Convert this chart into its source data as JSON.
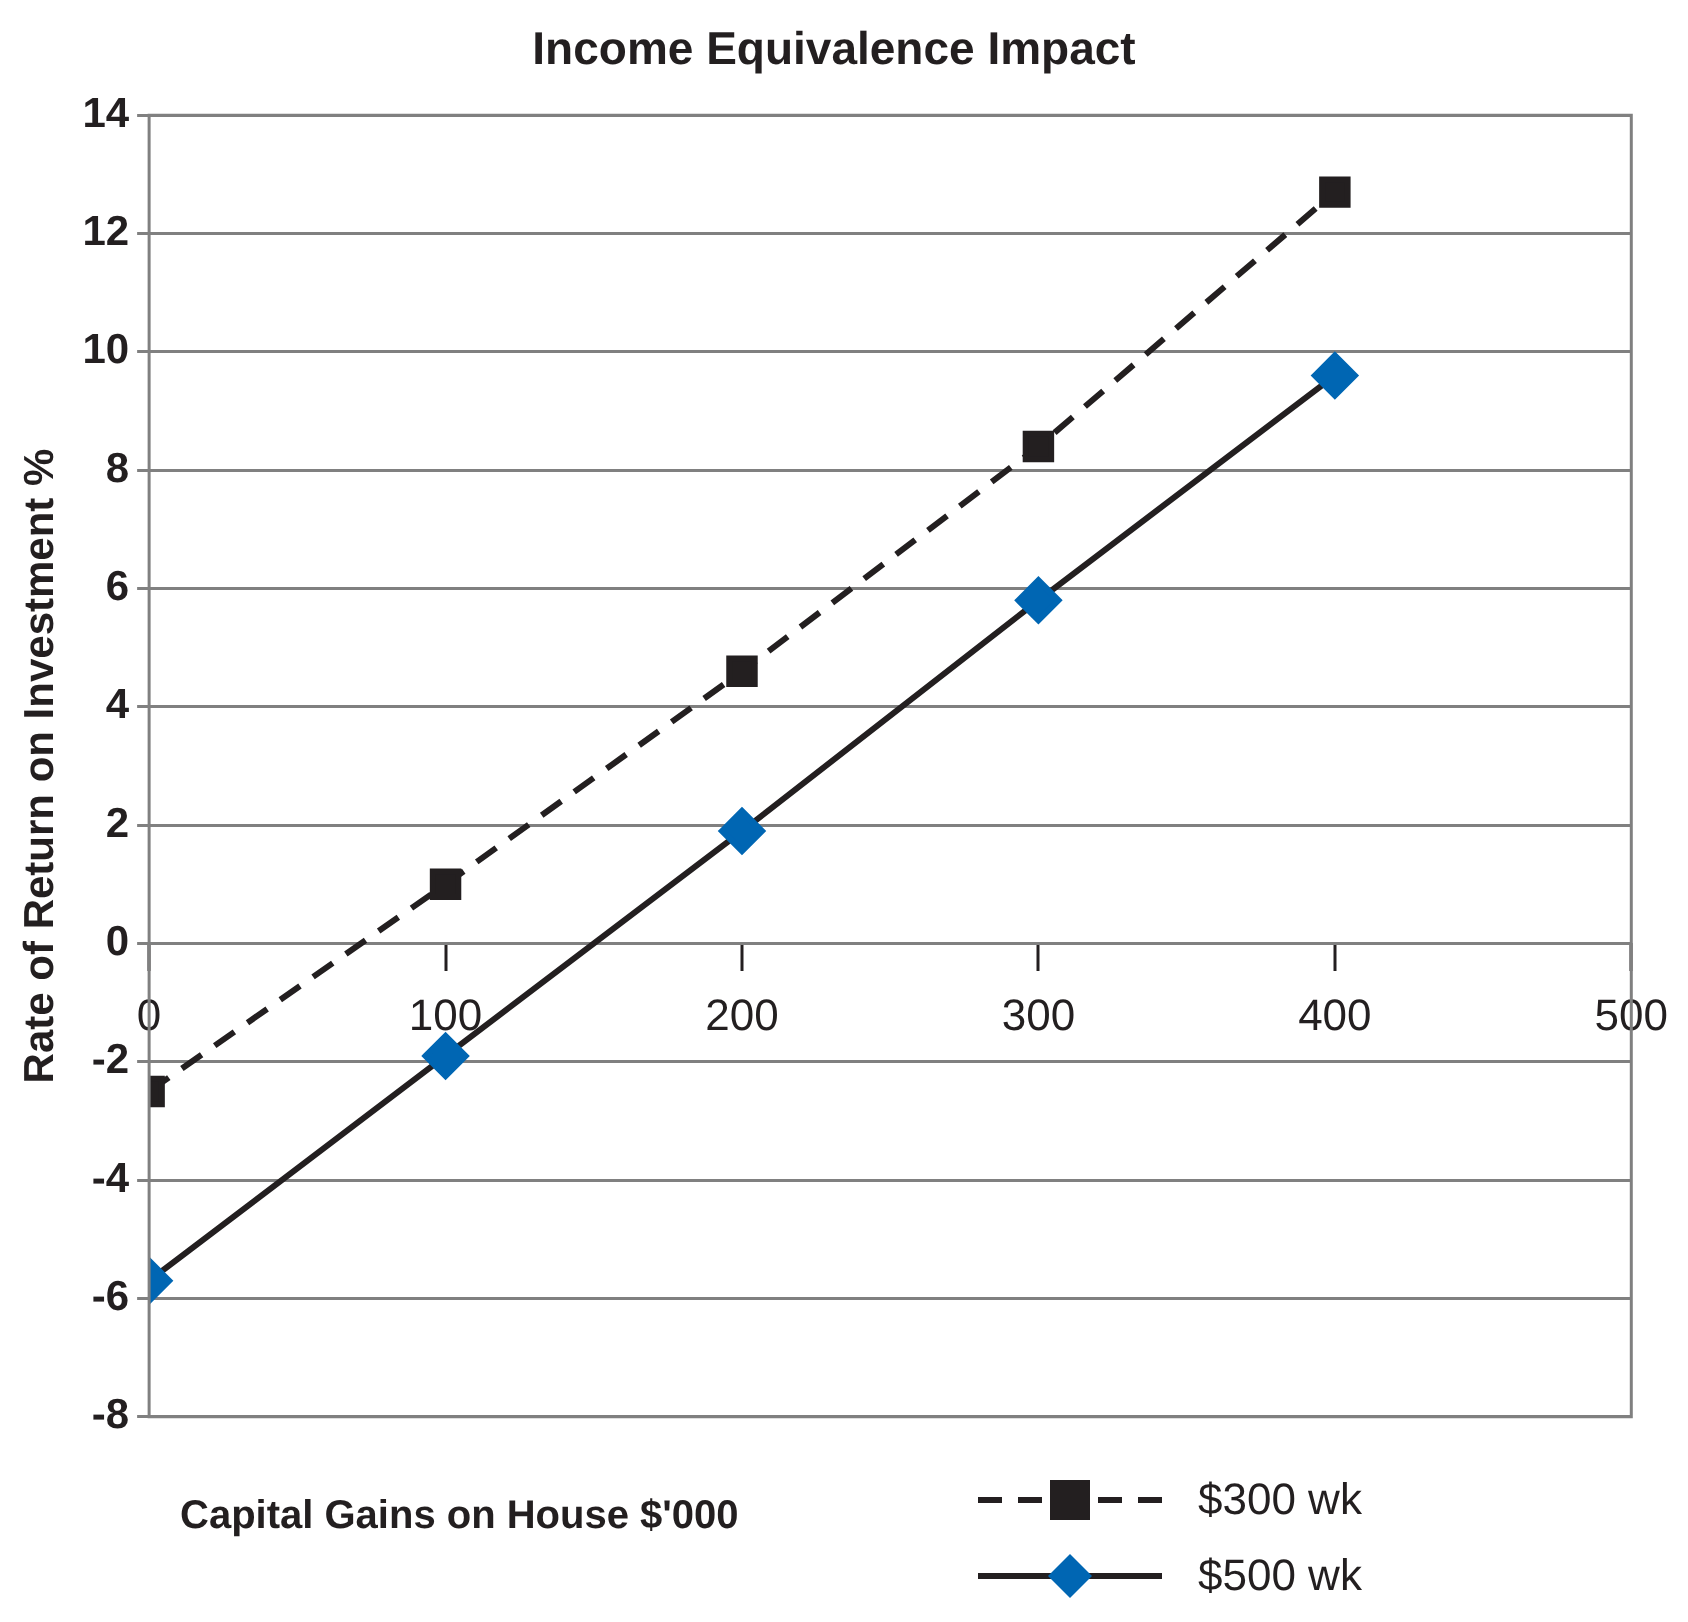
{
  "chart_data": {
    "type": "line",
    "title": "Income Equivalence Impact",
    "xlabel": "Capital Gains on House $'000",
    "ylabel": "Rate of Return on Investment %",
    "x": [
      0,
      100,
      200,
      300,
      400
    ],
    "series": [
      {
        "name": "$300 wk",
        "color": "#231f20",
        "marker": "square",
        "line_style": "dashed",
        "values": [
          -2.5,
          1.0,
          4.6,
          8.4,
          12.7
        ]
      },
      {
        "name": "$500 wk",
        "color": "#0066b3",
        "marker": "diamond",
        "line_style": "solid",
        "values": [
          -5.7,
          -1.9,
          1.9,
          5.8,
          9.6
        ]
      }
    ],
    "xlim": [
      0,
      500
    ],
    "xticks": [
      0,
      100,
      200,
      300,
      400,
      500
    ],
    "ylim": [
      -8,
      14
    ],
    "yticks": [
      -8,
      -6,
      -4,
      -2,
      0,
      2,
      4,
      6,
      8,
      10,
      12,
      14
    ],
    "grid": "y",
    "legend": "bottom right"
  }
}
